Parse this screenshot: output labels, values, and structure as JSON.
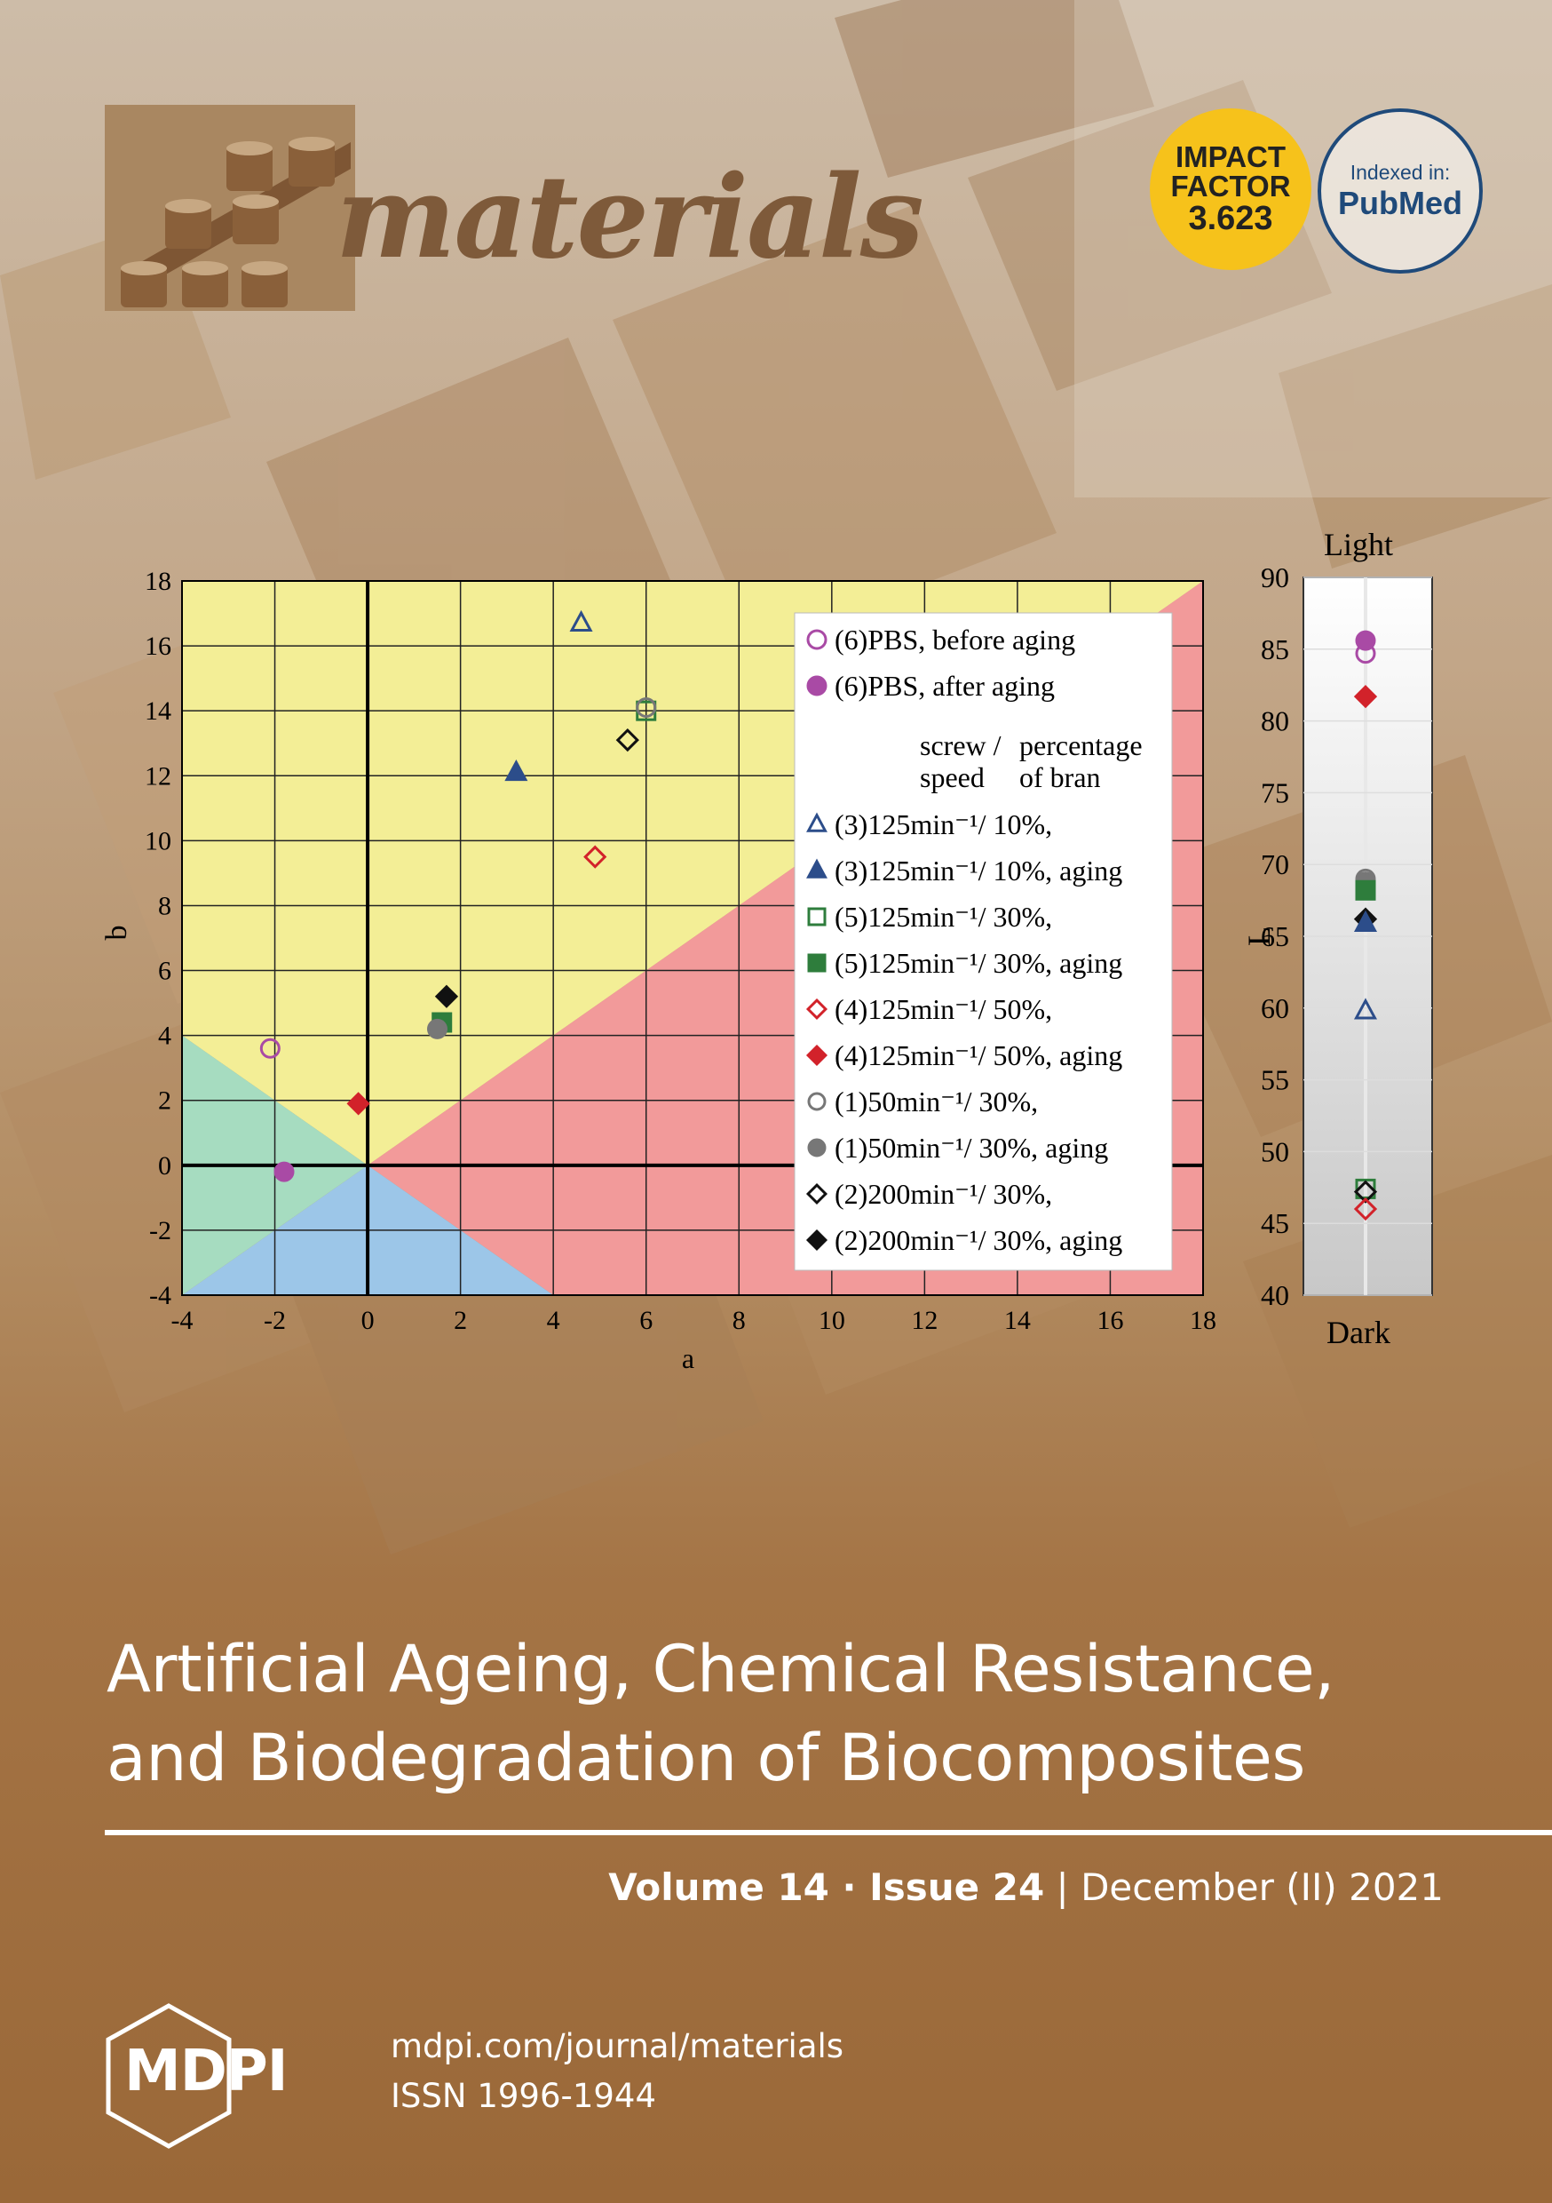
{
  "journal": {
    "name": "materials",
    "impact_badge": {
      "line1": "IMPACT",
      "line2": "FACTOR",
      "value": "3.623",
      "color": "#f6c21b"
    },
    "pubmed_badge": {
      "line1": "Indexed in:",
      "line2": "PubMed",
      "color": "#1f4a7a"
    }
  },
  "article_title": {
    "line1": "Artificial Ageing, Chemical Resistance,",
    "line2": "and Biodegradation of Biocomposites"
  },
  "issue": {
    "volume": "Volume 14",
    "sep": " · ",
    "issue": "Issue 24",
    "divider": " | ",
    "date": "December (II) 2021"
  },
  "publisher": {
    "logo_text": "MDPI",
    "url": "mdpi.com/journal/materials",
    "issn": "ISSN 1996-1944"
  },
  "chart_data": [
    {
      "type": "scatter",
      "xlabel": "a",
      "ylabel": "b",
      "xlim": [
        -4,
        18
      ],
      "ylim": [
        -4,
        18
      ],
      "x_ticks": [
        "-4",
        "-2",
        "0",
        "2",
        "4",
        "6",
        "8",
        "10",
        "12",
        "14",
        "16",
        "18"
      ],
      "y_ticks": [
        "-4",
        "-2",
        "0",
        "2",
        "4",
        "6",
        "8",
        "10",
        "12",
        "14",
        "16",
        "18"
      ],
      "grid": true,
      "legend_position": "top-right",
      "legend_subheader": {
        "col1_line1": "screw /",
        "col1_line2": "speed",
        "col2_line1": "percentage",
        "col2_line2": "of bran"
      },
      "series": [
        {
          "name": "(6)PBS, before aging",
          "marker": "circle-open",
          "color": "#a94aa5",
          "points": [
            [
              -2.1,
              3.6
            ]
          ]
        },
        {
          "name": "(6)PBS, after aging",
          "marker": "circle",
          "color": "#a94aa5",
          "points": [
            [
              -1.8,
              -0.2
            ]
          ]
        },
        {
          "name": "(3)125min⁻¹/ 10%,",
          "marker": "triangle-open",
          "color": "#2c4d8a",
          "points": [
            [
              4.6,
              16.7
            ]
          ]
        },
        {
          "name": "(3)125min⁻¹/ 10%, aging",
          "marker": "triangle",
          "color": "#2c4d8a",
          "points": [
            [
              3.2,
              12.1
            ]
          ]
        },
        {
          "name": "(5)125min⁻¹/ 30%,",
          "marker": "square-open",
          "color": "#2e7d3c",
          "points": [
            [
              6.0,
              14.0
            ]
          ]
        },
        {
          "name": "(5)125min⁻¹/ 30%, aging",
          "marker": "square",
          "color": "#2e7d3c",
          "points": [
            [
              1.6,
              4.4
            ]
          ]
        },
        {
          "name": "(4)125min⁻¹/ 50%,",
          "marker": "diamond-open",
          "color": "#d2222a",
          "points": [
            [
              4.9,
              9.5
            ]
          ]
        },
        {
          "name": "(4)125min⁻¹/ 50%, aging",
          "marker": "diamond",
          "color": "#d2222a",
          "points": [
            [
              -0.2,
              1.9
            ]
          ]
        },
        {
          "name": "(1)50min⁻¹/ 30%,",
          "marker": "circle-open",
          "color": "#777777",
          "points": [
            [
              6.0,
              14.1
            ]
          ]
        },
        {
          "name": "(1)50min⁻¹/ 30%, aging",
          "marker": "circle",
          "color": "#777777",
          "points": [
            [
              1.5,
              4.2
            ]
          ]
        },
        {
          "name": "(2)200min⁻¹/ 30%,",
          "marker": "diamond-open",
          "color": "#111111",
          "points": [
            [
              5.6,
              13.1
            ]
          ]
        },
        {
          "name": "(2)200min⁻¹/ 30%, aging",
          "marker": "diamond",
          "color": "#111111",
          "points": [
            [
              1.7,
              5.2
            ]
          ]
        }
      ]
    },
    {
      "type": "scatter",
      "ylabel": "L",
      "top_label": "Light",
      "bottom_label": "Dark",
      "ylim": [
        40,
        90
      ],
      "y_ticks": [
        "40",
        "45",
        "50",
        "55",
        "60",
        "65",
        "70",
        "75",
        "80",
        "85",
        "90"
      ],
      "points": [
        {
          "series": "(6)PBS, after aging",
          "L": 85.6
        },
        {
          "series": "(6)PBS, before aging",
          "L": 84.7
        },
        {
          "series": "(4)125min⁻¹/ 50%, aging",
          "L": 81.7
        },
        {
          "series": "(1)50min⁻¹/ 30%,",
          "L": 69.0
        },
        {
          "series": "(1)50min⁻¹/ 30%, aging",
          "L": 68.8
        },
        {
          "series": "(5)125min⁻¹/ 30%, aging",
          "L": 68.2
        },
        {
          "series": "(2)200min⁻¹/ 30%, aging",
          "L": 66.2
        },
        {
          "series": "(3)125min⁻¹/ 10%, aging",
          "L": 65.9
        },
        {
          "series": "(3)125min⁻¹/ 10%,",
          "L": 59.8
        },
        {
          "series": "(5)125min⁻¹/ 30%,",
          "L": 47.4
        },
        {
          "series": "(2)200min⁻¹/ 30%,",
          "L": 47.2
        },
        {
          "series": "(4)125min⁻¹/ 50%,",
          "L": 46.0
        }
      ]
    }
  ]
}
